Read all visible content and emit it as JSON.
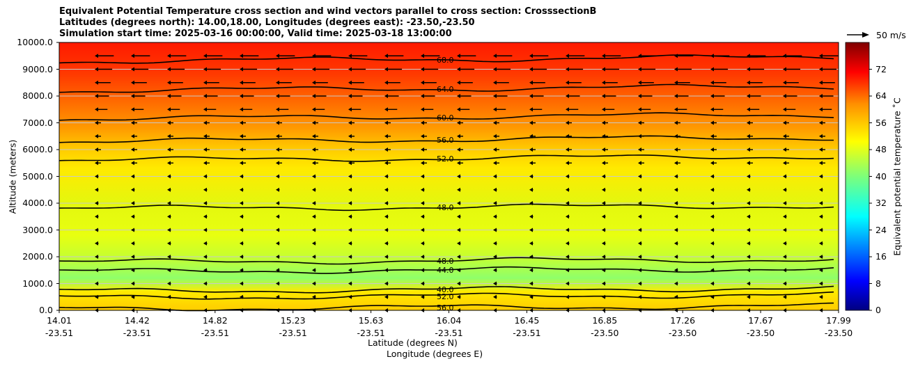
{
  "titles": [
    "Equivalent Potential Temperature cross section and wind vectors parallel to cross section: CrosssectionB",
    "Latitudes (degrees north): 14.00,18.00, Longitudes (degrees east): -23.50,-23.50",
    "Simulation start time: 2025-03-16 00:00:00, Valid time: 2025-03-18 13:00:00"
  ],
  "chart_data": {
    "type": "contour",
    "ylabel": "Altitude (meters)",
    "xlabel_lat": "Latitude (degrees N)",
    "xlabel_lon": "Longitude (degrees E)",
    "ylim": [
      0,
      10000
    ],
    "yticks": [
      "0.0",
      "1000.0",
      "2000.0",
      "3000.0",
      "4000.0",
      "5000.0",
      "6000.0",
      "7000.0",
      "8000.0",
      "9000.0",
      "10000.0"
    ],
    "xticks": [
      {
        "lat": "14.01",
        "lon": "-23.51"
      },
      {
        "lat": "14.42",
        "lon": "-23.51"
      },
      {
        "lat": "14.82",
        "lon": "-23.51"
      },
      {
        "lat": "15.23",
        "lon": "-23.51"
      },
      {
        "lat": "15.63",
        "lon": "-23.51"
      },
      {
        "lat": "16.04",
        "lon": "-23.51"
      },
      {
        "lat": "16.45",
        "lon": "-23.51"
      },
      {
        "lat": "16.85",
        "lon": "-23.50"
      },
      {
        "lat": "17.26",
        "lon": "-23.50"
      },
      {
        "lat": "17.67",
        "lon": "-23.50"
      },
      {
        "lat": "17.99",
        "lon": "-23.50"
      }
    ],
    "colorbar": {
      "label": "Equivalent potential temperature ˚C",
      "range": [
        0,
        80
      ],
      "ticks": [
        "0",
        "8",
        "16",
        "24",
        "32",
        "40",
        "48",
        "56",
        "64",
        "72"
      ]
    },
    "contour_levels": [
      {
        "value": 68.0,
        "altitude": 9300,
        "label": "68.0"
      },
      {
        "value": 64.0,
        "altitude": 8200,
        "label": "64.0"
      },
      {
        "value": 60.0,
        "altitude": 7150,
        "label": "60.0"
      },
      {
        "value": 56.0,
        "altitude": 6300,
        "label": "56.0"
      },
      {
        "value": 52.0,
        "altitude": 5600,
        "label": "52.0"
      },
      {
        "value": 48.0,
        "altitude": 3800,
        "label": "48.0"
      },
      {
        "value": 48.0,
        "altitude": 1800,
        "label": "48.0"
      },
      {
        "value": 44.0,
        "altitude": 1450,
        "label": "44.0"
      },
      {
        "value": 40.0,
        "altitude": 720,
        "label": "40.0"
      },
      {
        "value": 52.0,
        "altitude": 480,
        "label": "52.0"
      },
      {
        "value": 56.0,
        "altitude": 60,
        "label": "56.0"
      }
    ],
    "wind_key": {
      "label": "50 m/s"
    }
  }
}
